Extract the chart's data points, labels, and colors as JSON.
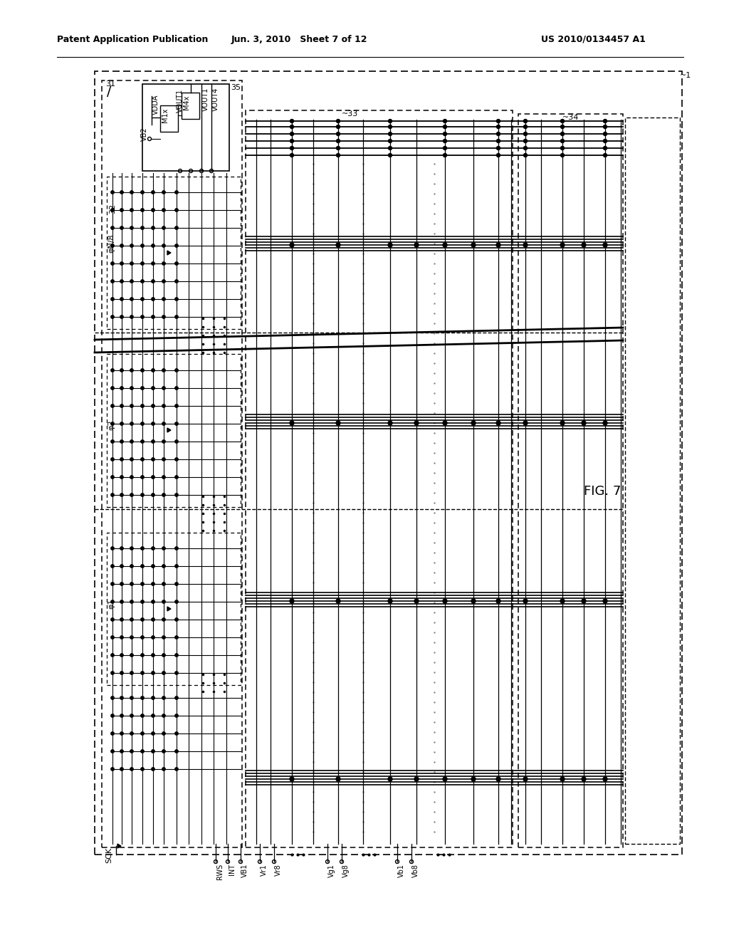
{
  "title_left": "Patent Application Publication",
  "title_center": "Jun. 3, 2010   Sheet 7 of 12",
  "title_right": "US 2010/0134457 A1",
  "fig_label": "FIG. 7",
  "bg_color": "#ffffff",
  "line_color": "#000000",
  "dashed_color": "#000000"
}
